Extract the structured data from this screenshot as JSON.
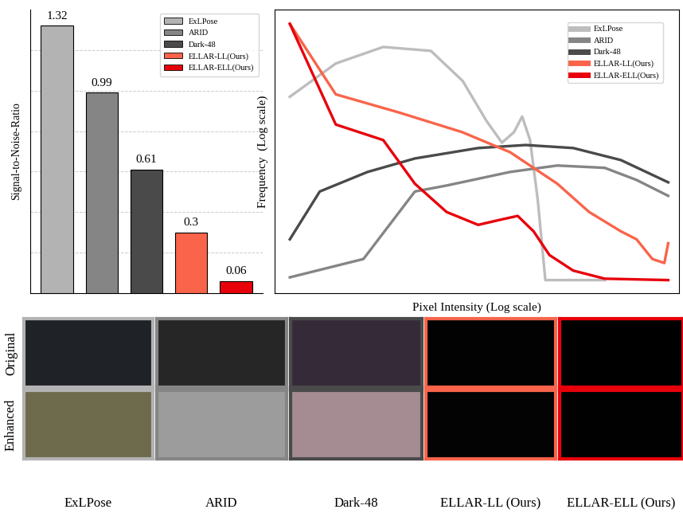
{
  "chart_data": [
    {
      "type": "bar",
      "y_label": "Signal-to-Noise-Ratio",
      "categories": [
        null,
        null,
        null,
        null,
        null
      ],
      "series": [
        {
          "name": "ExLPose",
          "color": "#b3b3b3",
          "values": [
            1.32,
            null,
            null,
            null,
            null
          ]
        },
        {
          "name": "ARID",
          "color": "#858585",
          "values": [
            null,
            0.99,
            null,
            null,
            null
          ]
        },
        {
          "name": "Dark-48",
          "color": "#4a4a4a",
          "values": [
            null,
            null,
            0.61,
            null,
            null
          ]
        },
        {
          "name": "ELLAR-LL(Ours)",
          "color": "#f9644a",
          "values": [
            null,
            null,
            null,
            0.3,
            null
          ]
        },
        {
          "name": "ELLAR-ELL(Ours)",
          "color": "#e8000b",
          "values": [
            null,
            null,
            null,
            null,
            0.06
          ]
        }
      ],
      "ylim": [
        0,
        1.4
      ],
      "yticks": [
        0.2,
        0.4,
        0.6,
        0.8,
        1.0,
        1.2
      ],
      "grid": true,
      "legend": "upper right",
      "data_labels": true,
      "tick_labels": false
    },
    {
      "type": "line",
      "x_label": "Pixel Intensity (Log scale)",
      "y_label": "Frequency  (Log scale)",
      "log": true,
      "xlim": [
        0.8,
        300
      ],
      "ylim": [
        1,
        100000
      ],
      "xticks": [],
      "yticks": [],
      "legend": "upper right",
      "tick_labels": false,
      "series": [
        {
          "name": "ExLPose",
          "color": "#bdbdbd",
          "x": [
            1,
            1.96,
            3.93,
            7.9,
            12.6,
            17.8,
            22.4,
            26.7,
            30.1,
            33.8,
            37.8,
            42.3,
            101
          ],
          "values": [
            2900,
            11200,
            21900,
            18700,
            5500,
            1100,
            450,
            690,
            1300,
            500,
            45,
            1.7,
            1.7
          ]
        },
        {
          "name": "ARID",
          "color": "#858585",
          "x": [
            1,
            2.94,
            6.25,
            9.94,
            25.2,
            50.4,
            101,
            161,
            256
          ],
          "values": [
            1.9,
            4,
            62,
            79,
            137,
            178,
            162,
            99,
            52
          ]
        },
        {
          "name": "Dark-48",
          "color": "#4a4a4a",
          "x": [
            1,
            1.55,
            3.12,
            6.25,
            15.8,
            31.7,
            63.6,
            128,
            256
          ],
          "values": [
            8.9,
            62,
            137,
            237,
            362,
            409,
            362,
            222,
            90
          ]
        },
        {
          "name": "ELLAR-LL(Ours)",
          "color": "#f9644a",
          "x": [
            1,
            1.96,
            4.96,
            12.5,
            25.2,
            50.4,
            80.3,
            128,
            161,
            203,
            242,
            256
          ],
          "values": [
            56000,
            3200,
            1530,
            690,
            306,
            85,
            27,
            12.3,
            8.9,
            4,
            3.4,
            7.6
          ]
        },
        {
          "name": "ELLAR-ELL(Ours)",
          "color": "#e8000b",
          "x": [
            1,
            1.96,
            3.93,
            6.25,
            9.94,
            15.8,
            22.4,
            28.2,
            35.6,
            44.9,
            63.6,
            101,
            256
          ],
          "values": [
            56000,
            940,
            500,
            85,
            27,
            16,
            20,
            23,
            12.3,
            4.7,
            2.5,
            1.8,
            1.7
          ]
        }
      ]
    }
  ],
  "image_grid": {
    "rows": [
      "Original",
      "Enhanced"
    ],
    "columns": [
      "ExLPose",
      "ARID",
      "Dark-48",
      "ELLAR-LL (Ours)",
      "ELLAR-ELL (Ours)"
    ]
  }
}
